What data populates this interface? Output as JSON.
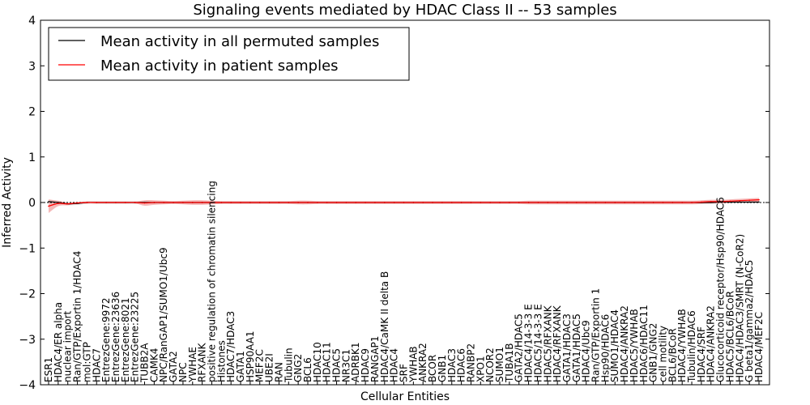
{
  "chart_data": {
    "type": "line",
    "title": "Signaling events mediated by HDAC Class II -- 53 samples",
    "xlabel": "Cellular Entities",
    "ylabel": "Inferred Activity",
    "ylim": [
      -4,
      4
    ],
    "yticks": [
      -4,
      -3,
      -2,
      -1,
      0,
      1,
      2,
      3,
      4
    ],
    "ytick_labels": [
      "−4",
      "−3",
      "−2",
      "−1",
      "0",
      "1",
      "2",
      "3",
      "4"
    ],
    "grid": false,
    "legend_position": "top-left",
    "colors": {
      "permuted": "#000000",
      "patient": "#ff0000",
      "patient_band": "#f2a0a0",
      "permuted_band": "#c8c8c8",
      "reference": "#000000"
    },
    "categories": [
      "ESR1",
      "HDAC4/ER alpha",
      "nuclear import",
      "Ran/GTP/Exportin 1/HDAC4",
      "mol:GTP",
      "HDAC7",
      "EntrezGene:9972",
      "EntrezGene:23636",
      "EntrezGene:8021",
      "EntrezGene:23225",
      "TUBB2A",
      "CAMK4",
      "NPC/RanGAP1/SUMO1/Ubc9",
      "GATA2",
      "NPC",
      "YWHAE",
      "RFXANK",
      "positive regulation of chromatin silencing",
      "Histones",
      "HDAC7/HDAC3",
      "GATA1",
      "HSP90AA1",
      "MEF2C",
      "UBE2I",
      "RAN",
      "Tubulin",
      "GNG2",
      "BCL6",
      "HDAC10",
      "HDAC11",
      "HDAC5",
      "NR3C1",
      "ADRBK1",
      "HDAC9",
      "RANGAP1",
      "HDAC4/CaMK II delta B",
      "HDAC4",
      "SRF",
      "YWHAB",
      "ANKRA2",
      "BCOR",
      "GNB1",
      "HDAC3",
      "HDAC6",
      "RANBP2",
      "XPO1",
      "NCOR2",
      "SUMO1",
      "TUBA1B",
      "GATA2/HDAC5",
      "HDAC4/14-3-3 E",
      "HDAC5/14-3-3 E",
      "HDAC5/RFXANK",
      "HDAC4/RFXANK",
      "GATA1/HDAC3",
      "GATA1/HDAC5",
      "HDAC4/Ubc9",
      "Ran/GTP/Exportin 1",
      "Hsp90/HDAC6",
      "SUMO1/HDAC4",
      "HDAC4/ANKRA2",
      "HDAC5/YWHAB",
      "HDAC6/HDAC11",
      "GNB1/GNG2",
      "cell motility",
      "BCL6/BCoR",
      "HDAC4/YWHAB",
      "Tubulin/HDAC6",
      "HDAC4/SRF",
      "HDAC4/ANKRA2",
      "Glucocorticoid receptor/Hsp90/HDAC6",
      "HDAC5/BCL6/BCoR",
      "HDAC4/HDAC3/SMRT (N-CoR2)",
      "G beta1/gamma2/HDAC5",
      "HDAC4/MEF2C"
    ],
    "series": [
      {
        "name": "Mean activity in all permuted samples",
        "values": [
          0.02,
          0.0,
          -0.03,
          -0.02,
          0.0,
          0.0,
          0.0,
          0.0,
          0.0,
          0.0,
          0.0,
          0.0,
          0.0,
          0.0,
          0.0,
          0.0,
          0.0,
          0.0,
          0.0,
          0.0,
          0.0,
          0.0,
          0.0,
          0.0,
          0.0,
          0.0,
          0.0,
          0.0,
          0.0,
          0.0,
          0.0,
          0.0,
          0.0,
          0.0,
          0.0,
          0.0,
          0.0,
          0.0,
          0.0,
          0.0,
          0.0,
          0.0,
          0.0,
          0.0,
          0.0,
          0.0,
          0.0,
          0.0,
          0.0,
          0.0,
          0.0,
          0.0,
          0.0,
          0.0,
          0.0,
          0.0,
          0.0,
          0.0,
          0.0,
          0.0,
          0.0,
          0.0,
          0.0,
          0.0,
          0.0,
          0.0,
          0.0,
          0.0,
          0.0,
          0.0,
          0.01,
          0.01,
          0.01,
          0.01,
          0.01
        ],
        "band": 0.03
      },
      {
        "name": "Mean activity in patient samples",
        "values": [
          -0.08,
          -0.02,
          -0.03,
          -0.01,
          0.0,
          0.0,
          0.0,
          0.0,
          0.0,
          0.0,
          -0.01,
          0.0,
          0.0,
          0.0,
          0.0,
          0.0,
          0.0,
          0.0,
          0.0,
          0.0,
          0.0,
          0.0,
          0.0,
          0.0,
          0.0,
          0.0,
          0.0,
          0.0,
          0.0,
          0.0,
          0.0,
          0.0,
          0.0,
          0.0,
          0.0,
          0.0,
          0.0,
          0.0,
          0.0,
          0.0,
          0.0,
          0.0,
          0.0,
          0.0,
          0.0,
          0.0,
          0.0,
          0.0,
          0.0,
          0.0,
          0.0,
          0.0,
          0.0,
          0.0,
          0.0,
          0.0,
          0.0,
          0.0,
          0.0,
          0.0,
          0.0,
          0.0,
          0.0,
          0.0,
          0.0,
          0.0,
          0.0,
          0.0,
          0.01,
          0.02,
          0.02,
          0.03,
          0.04,
          0.05,
          0.06
        ],
        "band": [
          0.15,
          0.06,
          0.03,
          0.02,
          0.02,
          0.02,
          0.02,
          0.02,
          0.02,
          0.02,
          0.06,
          0.05,
          0.04,
          0.03,
          0.04,
          0.05,
          0.05,
          0.04,
          0.03,
          0.03,
          0.03,
          0.03,
          0.03,
          0.03,
          0.03,
          0.03,
          0.04,
          0.04,
          0.03,
          0.03,
          0.03,
          0.03,
          0.03,
          0.03,
          0.03,
          0.03,
          0.03,
          0.03,
          0.03,
          0.03,
          0.03,
          0.03,
          0.03,
          0.03,
          0.03,
          0.03,
          0.03,
          0.03,
          0.03,
          0.03,
          0.04,
          0.04,
          0.04,
          0.04,
          0.04,
          0.04,
          0.04,
          0.04,
          0.04,
          0.04,
          0.04,
          0.04,
          0.04,
          0.04,
          0.04,
          0.04,
          0.04,
          0.04,
          0.04,
          0.04,
          0.04,
          0.04,
          0.04,
          0.04,
          0.04
        ]
      }
    ]
  }
}
